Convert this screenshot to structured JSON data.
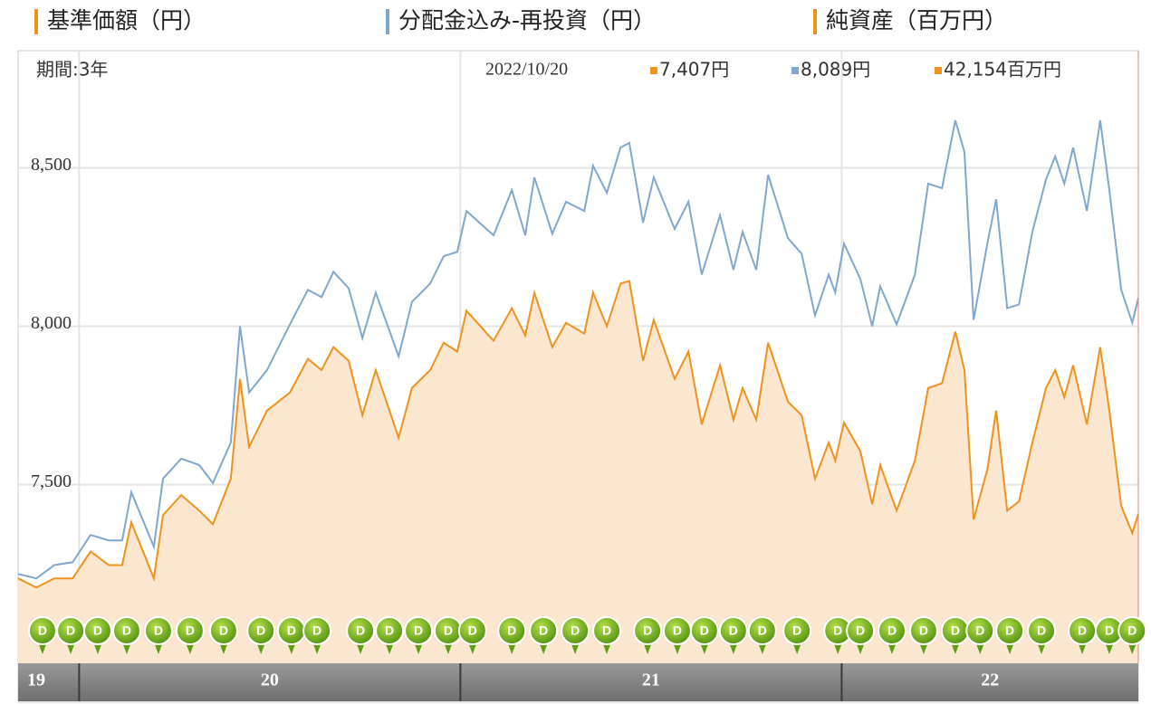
{
  "chart_data": {
    "type": "line",
    "legend_extra": {
      "name": "純資産（百万円）",
      "color": "#f0921e"
    },
    "readout": {
      "period": "期間:3年",
      "date": "2022/10/20",
      "items": [
        "7,407円",
        "8,089円",
        "42,154百万円"
      ]
    },
    "x": [
      2019.84,
      2019.888,
      2019.935,
      2019.983,
      2020.03,
      2020.078,
      2020.113,
      2020.137,
      2020.196,
      2020.22,
      2020.268,
      2020.315,
      2020.351,
      2020.398,
      2020.422,
      2020.446,
      2020.493,
      2020.553,
      2020.6,
      2020.636,
      2020.667,
      2020.707,
      2020.743,
      2020.778,
      2020.838,
      2020.873,
      2020.921,
      2020.956,
      2020.992,
      2021.016,
      2021.087,
      2021.135,
      2021.17,
      2021.194,
      2021.241,
      2021.277,
      2021.325,
      2021.348,
      2021.384,
      2021.42,
      2021.443,
      2021.479,
      2021.507,
      2021.562,
      2021.598,
      2021.633,
      2021.681,
      2021.716,
      2021.74,
      2021.776,
      2021.807,
      2021.859,
      2021.895,
      2021.93,
      2021.966,
      2021.983,
      2022.006,
      2022.049,
      2022.08,
      2022.101,
      2022.144,
      2022.192,
      2022.227,
      2022.263,
      2022.298,
      2022.322,
      2022.346,
      2022.382,
      2022.405,
      2022.434,
      2022.465,
      2022.5,
      2022.536,
      2022.56,
      2022.584,
      2022.607,
      2022.643,
      2022.678,
      2022.702,
      2022.733,
      2022.762,
      2022.778
    ],
    "series": [
      {
        "name": "基準価額（円）",
        "color": "#f0921e",
        "area_color": "#fbe6cf",
        "values": [
          7204,
          7175,
          7204,
          7204,
          7289,
          7246,
          7246,
          7381,
          7204,
          7404,
          7467,
          7418,
          7375,
          7519,
          7834,
          7619,
          7734,
          7791,
          7897,
          7862,
          7934,
          7891,
          7719,
          7862,
          7648,
          7805,
          7862,
          7948,
          7920,
          8049,
          7954,
          8057,
          7971,
          8106,
          7934,
          8011,
          7977,
          8106,
          8000,
          8135,
          8143,
          7891,
          8020,
          7834,
          7920,
          7690,
          7877,
          7705,
          7805,
          7705,
          7948,
          7762,
          7719,
          7519,
          7633,
          7576,
          7696,
          7605,
          7438,
          7562,
          7418,
          7576,
          7805,
          7820,
          7983,
          7862,
          7390,
          7548,
          7734,
          7418,
          7447,
          7633,
          7805,
          7862,
          7776,
          7877,
          7690,
          7934,
          7734,
          7433,
          7347,
          7407
        ]
      },
      {
        "name": "分配金込み-再投資（円）",
        "color": "#7fa7cf",
        "values": [
          7218,
          7204,
          7246,
          7255,
          7341,
          7324,
          7324,
          7476,
          7304,
          7519,
          7582,
          7562,
          7505,
          7633,
          8000,
          7791,
          7862,
          8006,
          8115,
          8092,
          8172,
          8120,
          7963,
          8106,
          7905,
          8077,
          8135,
          8221,
          8235,
          8364,
          8287,
          8430,
          8287,
          8470,
          8292,
          8393,
          8364,
          8507,
          8421,
          8564,
          8579,
          8327,
          8470,
          8307,
          8393,
          8163,
          8350,
          8178,
          8298,
          8178,
          8478,
          8278,
          8229,
          8034,
          8163,
          8106,
          8261,
          8149,
          8000,
          8126,
          8006,
          8163,
          8450,
          8436,
          8650,
          8550,
          8020,
          8261,
          8401,
          8057,
          8069,
          8298,
          8464,
          8536,
          8450,
          8564,
          8364,
          8650,
          8430,
          8115,
          8011,
          8089
        ]
      }
    ],
    "xlim": [
      2019.84,
      2022.778
    ],
    "xticks": [
      {
        "value": 2019,
        "label": "19"
      },
      {
        "value": 2020,
        "label": "20"
      },
      {
        "value": 2021,
        "label": "21"
      },
      {
        "value": 2022,
        "label": "22"
      }
    ],
    "ylim": [
      6936,
      8870
    ],
    "yticks": [
      {
        "value": 7500,
        "label": "7,500"
      },
      {
        "value": 8000,
        "label": "8,000"
      },
      {
        "value": 8500,
        "label": "8,500"
      }
    ],
    "grid": true,
    "dividends": {
      "label": "D",
      "color": "#5e9f12",
      "x": [
        2019.904,
        2019.978,
        2020.049,
        2020.125,
        2020.208,
        2020.291,
        2020.379,
        2020.477,
        2020.557,
        2020.624,
        2020.738,
        2020.814,
        2020.89,
        2020.968,
        2021.032,
        2021.135,
        2021.218,
        2021.301,
        2021.384,
        2021.491,
        2021.569,
        2021.64,
        2021.716,
        2021.792,
        2021.883,
        2021.99,
        2022.049,
        2022.132,
        2022.215,
        2022.298,
        2022.363,
        2022.441,
        2022.524,
        2022.631,
        2022.702,
        2022.762
      ]
    }
  }
}
